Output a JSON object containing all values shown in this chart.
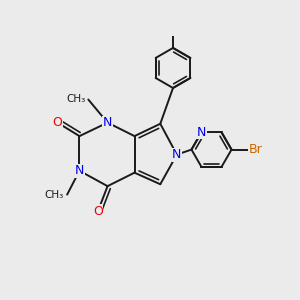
{
  "background_color": "#ebebeb",
  "bond_color": "#1a1a1a",
  "bond_width": 1.4,
  "atom_colors": {
    "N": "#0000ee",
    "O": "#ee0000",
    "Br": "#cc6600",
    "C": "#1a1a1a"
  },
  "font_size_atoms": 9,
  "font_size_methyl": 7.5,
  "xlim": [
    -0.3,
    5.0
  ],
  "ylim": [
    -0.5,
    5.5
  ]
}
